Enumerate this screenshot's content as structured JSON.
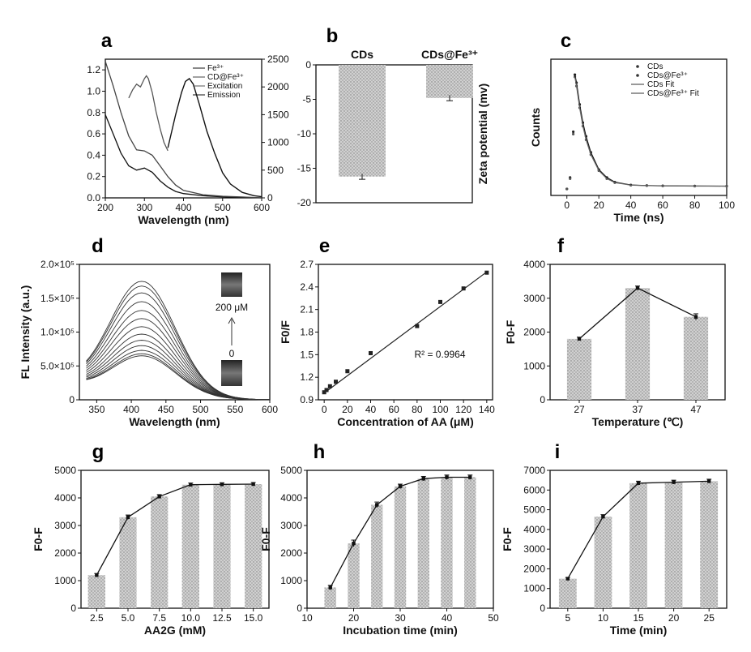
{
  "chart_data": [
    {
      "id": "a",
      "panel_label": "a",
      "type": "line",
      "xlabel": "Wavelength (nm)",
      "xlim": [
        200,
        600
      ],
      "xticks": [
        200,
        300,
        400,
        500,
        600
      ],
      "ylim": [
        0,
        1.3
      ],
      "yticks": [
        0.0,
        0.2,
        0.4,
        0.6,
        0.8,
        1.0,
        1.2
      ],
      "y2lim": [
        0,
        2500
      ],
      "y2ticks": [
        0,
        500,
        1000,
        1500,
        2000,
        2500
      ],
      "legend": [
        "Fe³⁺",
        "CD@Fe³⁺",
        "Excitation",
        "Emission"
      ],
      "series": [
        {
          "name": "Fe³⁺",
          "axis": "left",
          "x": [
            200,
            220,
            240,
            260,
            280,
            300,
            320,
            340,
            360,
            380,
            400,
            450,
            500,
            550,
            600
          ],
          "y": [
            0.78,
            0.6,
            0.42,
            0.3,
            0.26,
            0.28,
            0.24,
            0.16,
            0.1,
            0.06,
            0.04,
            0.02,
            0.01,
            0.005,
            0.0
          ]
        },
        {
          "name": "CD@Fe³⁺",
          "axis": "left",
          "x": [
            200,
            220,
            240,
            260,
            280,
            300,
            320,
            340,
            360,
            380,
            400,
            450,
            500,
            550,
            600
          ],
          "y": [
            1.28,
            1.05,
            0.8,
            0.58,
            0.45,
            0.44,
            0.4,
            0.3,
            0.2,
            0.12,
            0.07,
            0.03,
            0.015,
            0.008,
            0.0
          ]
        },
        {
          "name": "Excitation",
          "axis": "right",
          "x": [
            260,
            270,
            280,
            290,
            300,
            305,
            310,
            320,
            330,
            340,
            350,
            360
          ],
          "y": [
            1800,
            1950,
            2050,
            2000,
            2150,
            2200,
            2150,
            1900,
            1550,
            1250,
            1000,
            850
          ]
        },
        {
          "name": "Emission",
          "axis": "right",
          "x": [
            360,
            380,
            395,
            405,
            415,
            425,
            440,
            460,
            480,
            500,
            520,
            550,
            580,
            600
          ],
          "y": [
            900,
            1500,
            1900,
            2100,
            2150,
            2050,
            1700,
            1200,
            800,
            450,
            250,
            100,
            40,
            20
          ]
        }
      ]
    },
    {
      "id": "b",
      "panel_label": "b",
      "type": "bar",
      "categories": [
        "CDs",
        "CDs@Fe³⁺"
      ],
      "values": [
        -16.2,
        -4.8
      ],
      "errors": [
        0.4,
        0.4
      ],
      "ylabel": "Zeta potential (mv)",
      "ylim": [
        -20,
        0
      ],
      "yticks": [
        -20,
        -15,
        -10,
        -5,
        0
      ]
    },
    {
      "id": "c",
      "panel_label": "c",
      "type": "line",
      "xlabel": "Time (ns)",
      "ylabel": "Counts",
      "xlim": [
        -10,
        100
      ],
      "xticks": [
        0,
        20,
        40,
        60,
        80,
        100
      ],
      "legend": [
        "CDs",
        "CDs@Fe³⁺",
        "CDs Fit",
        "CDs@Fe³⁺ Fit"
      ],
      "series": [
        {
          "name": "CDs",
          "x": [
            0,
            2,
            4,
            5,
            6,
            8,
            10,
            12,
            15,
            20,
            25,
            30,
            40,
            50,
            60,
            80,
            100
          ],
          "y": [
            0.0,
            0.1,
            0.5,
            1.0,
            0.93,
            0.74,
            0.58,
            0.46,
            0.32,
            0.17,
            0.1,
            0.06,
            0.035,
            0.03,
            0.028,
            0.026,
            0.025
          ]
        },
        {
          "name": "CDs@Fe³⁺",
          "x": [
            0,
            2,
            4,
            5,
            6,
            8,
            10,
            12,
            15,
            20,
            25,
            30,
            40,
            50,
            60,
            80,
            100
          ],
          "y": [
            0.0,
            0.09,
            0.48,
            0.98,
            0.9,
            0.71,
            0.55,
            0.43,
            0.3,
            0.16,
            0.09,
            0.055,
            0.033,
            0.029,
            0.027,
            0.025,
            0.024
          ]
        },
        {
          "name": "CDs Fit",
          "x": [
            5,
            6,
            8,
            10,
            12,
            15,
            20,
            25,
            30,
            40,
            50,
            60,
            80,
            100
          ],
          "y": [
            1.0,
            0.93,
            0.74,
            0.58,
            0.46,
            0.32,
            0.17,
            0.1,
            0.06,
            0.035,
            0.03,
            0.028,
            0.026,
            0.025
          ]
        },
        {
          "name": "CDs@Fe³⁺ Fit",
          "x": [
            5,
            6,
            8,
            10,
            12,
            15,
            20,
            25,
            30,
            40,
            50,
            60,
            80,
            100
          ],
          "y": [
            0.98,
            0.9,
            0.71,
            0.55,
            0.43,
            0.3,
            0.16,
            0.09,
            0.055,
            0.033,
            0.029,
            0.027,
            0.025,
            0.024
          ]
        }
      ]
    },
    {
      "id": "d",
      "panel_label": "d",
      "type": "line",
      "xlabel": "Wavelength (nm)",
      "ylabel": "FL Intensity (a.u.)",
      "xlim": [
        325,
        600
      ],
      "xticks": [
        350,
        400,
        450,
        500,
        550,
        600
      ],
      "ylim": [
        0,
        200000
      ],
      "ytick_values": [
        0,
        50000,
        100000,
        150000,
        200000
      ],
      "ytick_labels": [
        "0",
        "5.0×10⁵",
        "1.0×10⁵",
        "1.5×10⁵",
        "2.0×10⁵"
      ],
      "inset_top_label": "200 μM",
      "inset_bottom_label": "0",
      "peak_nm": 415,
      "peak_values": [
        175000,
        168000,
        158000,
        145000,
        132000,
        120000,
        108000,
        97000,
        88000,
        80000,
        73000,
        68000,
        65000
      ]
    },
    {
      "id": "e",
      "panel_label": "e",
      "type": "scatter",
      "xlabel": "Concentration of AA (μM)",
      "ylabel": "F0/F",
      "xlim": [
        -5,
        145
      ],
      "xticks": [
        0,
        20,
        40,
        60,
        80,
        100,
        120,
        140
      ],
      "ylim": [
        0.9,
        2.7
      ],
      "yticks": [
        0.9,
        1.2,
        1.5,
        1.8,
        2.1,
        2.4,
        2.7
      ],
      "x": [
        0,
        2,
        5,
        10,
        20,
        40,
        80,
        100,
        120,
        140
      ],
      "y": [
        1.0,
        1.03,
        1.08,
        1.14,
        1.28,
        1.52,
        1.88,
        2.2,
        2.38,
        2.59
      ],
      "fit": {
        "x": [
          0,
          140
        ],
        "y": [
          0.99,
          2.6
        ]
      },
      "annotation": "R² = 0.9964"
    },
    {
      "id": "f",
      "panel_label": "f",
      "type": "bar",
      "xlabel": "Temperature (℃)",
      "ylabel": "F0-F",
      "categories": [
        "27",
        "37",
        "47"
      ],
      "values": [
        1800,
        3300,
        2450
      ],
      "errors": [
        50,
        60,
        90
      ],
      "ylim": [
        0,
        4000
      ],
      "yticks": [
        0,
        1000,
        2000,
        3000,
        4000
      ]
    },
    {
      "id": "g",
      "panel_label": "g",
      "type": "bar",
      "xlabel": "AA2G (mM)",
      "ylabel": "F0-F",
      "categories": [
        "2.5",
        "5.0",
        "7.5",
        "10.0",
        "12.5",
        "15.0"
      ],
      "values": [
        1200,
        3300,
        4050,
        4480,
        4490,
        4500
      ],
      "errors": [
        60,
        80,
        70,
        60,
        60,
        60
      ],
      "ylim": [
        0,
        5000
      ],
      "yticks": [
        0,
        1000,
        2000,
        3000,
        4000,
        5000
      ]
    },
    {
      "id": "h",
      "panel_label": "h",
      "type": "bar",
      "xlabel": "Incubation time (min)",
      "ylabel": "F0-F",
      "x": [
        15,
        20,
        25,
        30,
        35,
        40,
        45
      ],
      "values": [
        750,
        2350,
        3750,
        4420,
        4700,
        4750,
        4750
      ],
      "errors": [
        80,
        120,
        100,
        80,
        80,
        80,
        80
      ],
      "xlim": [
        10,
        50
      ],
      "xticks": [
        10,
        20,
        30,
        40,
        50
      ],
      "ylim": [
        0,
        5000
      ],
      "yticks": [
        0,
        1000,
        2000,
        3000,
        4000,
        5000
      ]
    },
    {
      "id": "i",
      "panel_label": "i",
      "type": "bar",
      "xlabel": "Time (min)",
      "ylabel": "F0-F",
      "categories": [
        "5",
        "10",
        "15",
        "20",
        "25"
      ],
      "values": [
        1500,
        4650,
        6350,
        6400,
        6450
      ],
      "errors": [
        60,
        100,
        100,
        100,
        100
      ],
      "ylim": [
        0,
        7000
      ],
      "yticks": [
        0,
        1000,
        2000,
        3000,
        4000,
        5000,
        6000,
        7000
      ]
    }
  ]
}
